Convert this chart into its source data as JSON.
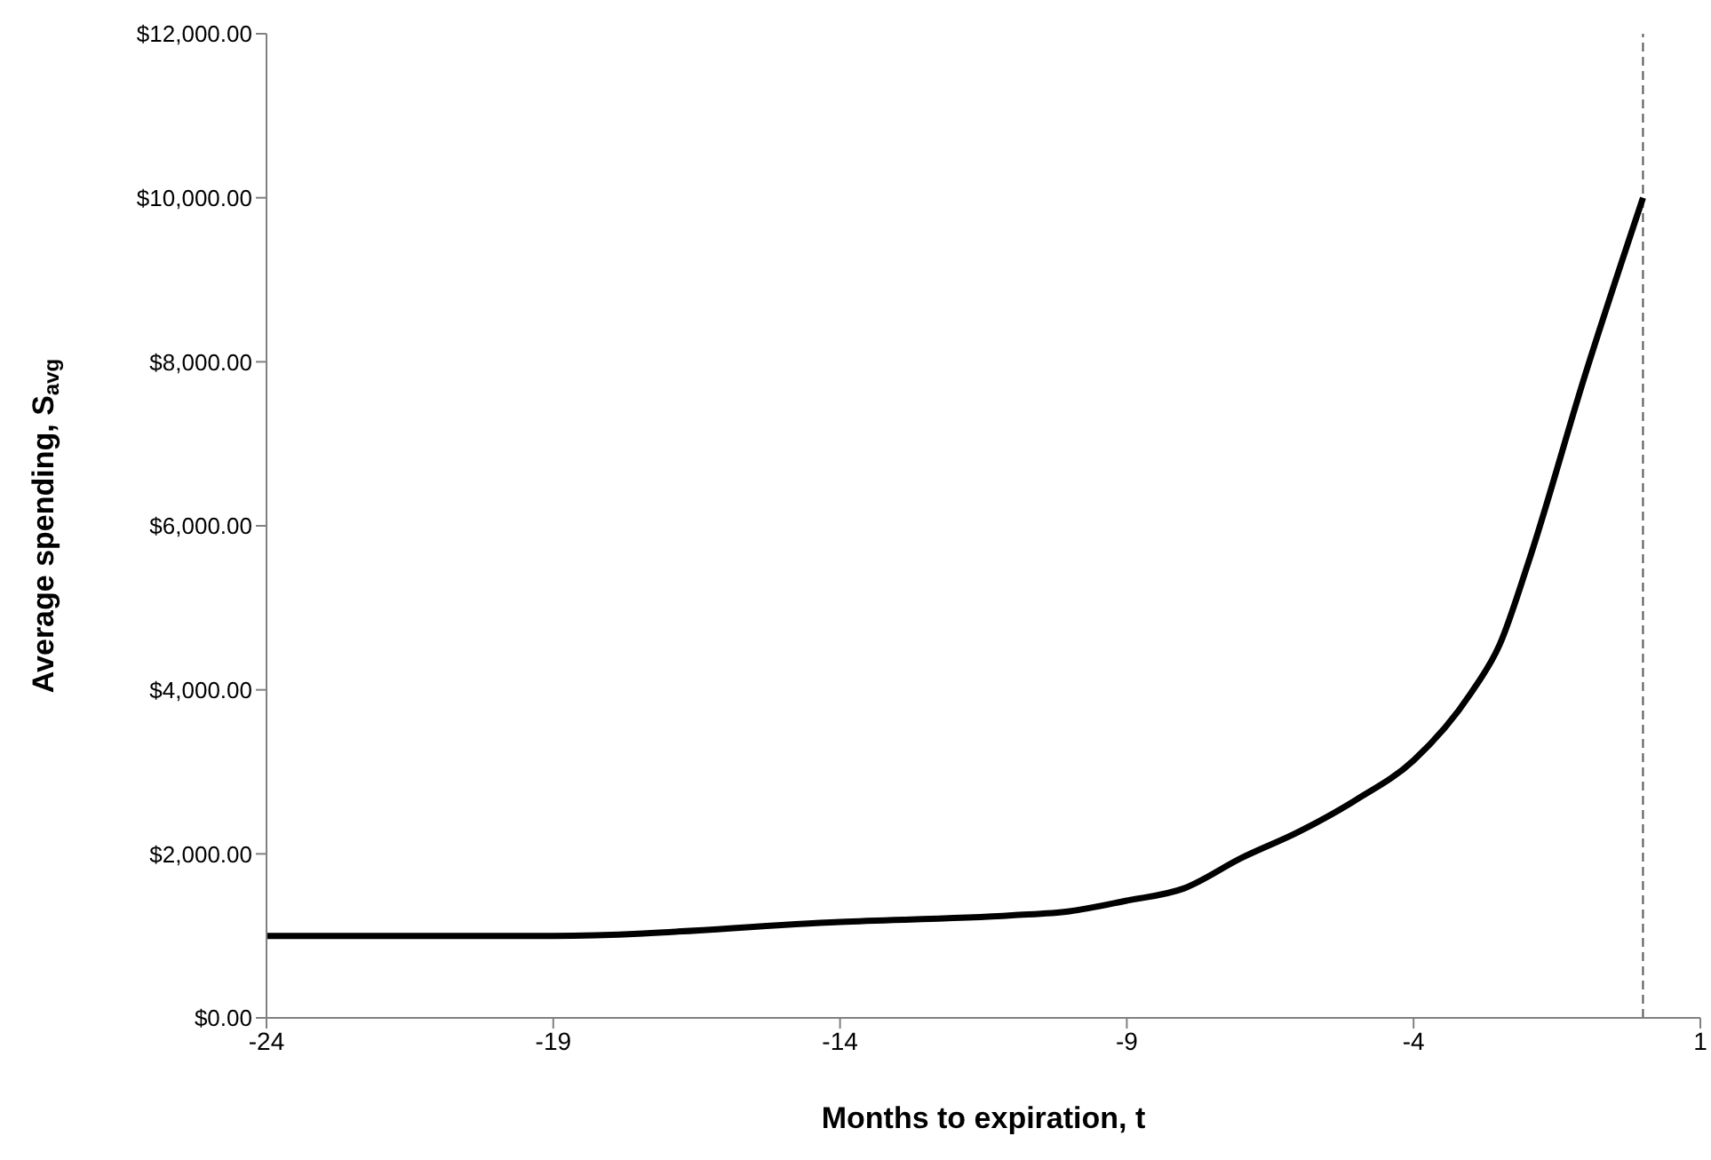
{
  "chart_data": {
    "type": "line",
    "xlabel": "Months to expiration, t",
    "ylabel": "Average spending, S$_{avg}$",
    "x": [
      -24,
      -19,
      -14,
      -11,
      -10,
      -9,
      -8,
      -7,
      -6,
      -5,
      -4,
      -3,
      -2.5,
      -2,
      -1,
      0
    ],
    "series": [
      {
        "color": "#000000",
        "values": [
          1000,
          1000,
          1170,
          1250,
          1300,
          1430,
          1580,
          1950,
          2270,
          2660,
          3140,
          3960,
          4550,
          5550,
          7860,
          10000
        ]
      }
    ],
    "xlim": [
      -24,
      1
    ],
    "xticks": [
      -24,
      -19,
      -14,
      -9,
      -4,
      1
    ],
    "ylim": [
      0,
      12000
    ],
    "yticks": [
      {
        "value": 0,
        "label": "$0.00"
      },
      {
        "value": 2000,
        "label": "$2,000.00"
      },
      {
        "value": 4000,
        "label": "$4,000.00"
      },
      {
        "value": 6000,
        "label": "$6,000.00"
      },
      {
        "value": 8000,
        "label": "$8,000.00"
      },
      {
        "value": 10000,
        "label": "$10,000.00"
      },
      {
        "value": 12000,
        "label": "$12,000.00"
      }
    ],
    "ref_lines": [
      {
        "axis": "x",
        "value": 0,
        "color": "#555555",
        "line_style": "dashed"
      }
    ],
    "grid": false,
    "legend": false,
    "marker": "none",
    "line_style": "solid"
  }
}
